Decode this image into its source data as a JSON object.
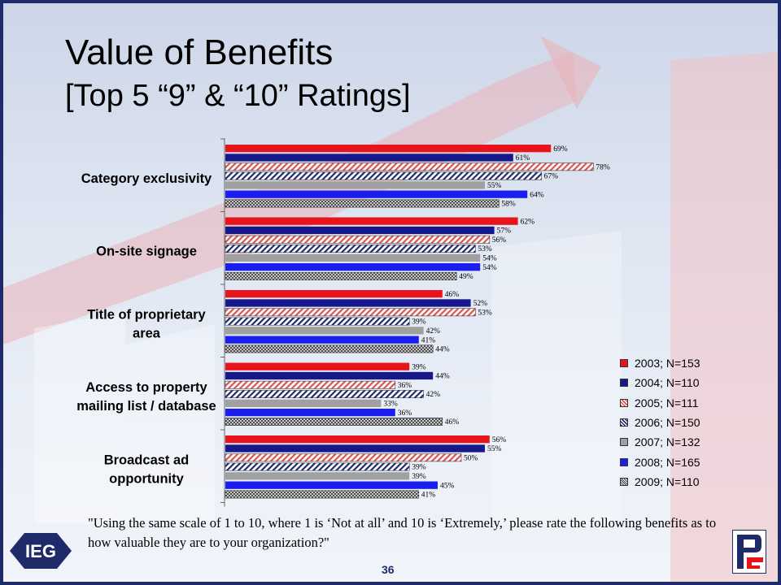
{
  "slide": {
    "title_line1": "Value of Benefits",
    "title_line2": "[Top 5 “9” & “10” Ratings]",
    "note": "\"Using the same scale of 1 to 10, where 1 is ‘Not at all’ and 10 is ‘Extremely,’ please rate the following benefits as to how valuable they are to your organization?\"",
    "page_number": "36",
    "logo_text": "IEG"
  },
  "colors": {
    "2003": "#e8141c",
    "2004": "#17198a",
    "2005": "#d9534f",
    "2006": "#1f2a6b",
    "2007": "#a0a0a0",
    "2008": "#1a1ff0",
    "2009": "#555555",
    "frame": "#1f2a6b"
  },
  "chart_data": {
    "type": "bar",
    "orientation": "horizontal",
    "categories": [
      "Category exclusivity",
      "On-site signage",
      "Title of proprietary area",
      "Access to property mailing list / database",
      "Broadcast ad opportunity"
    ],
    "series": [
      {
        "name": "2003; N=153",
        "fill": "solid",
        "values": [
          69,
          62,
          46,
          39,
          56
        ]
      },
      {
        "name": "2004; N=110",
        "fill": "solid",
        "values": [
          61,
          57,
          52,
          44,
          55
        ]
      },
      {
        "name": "2005; N=111",
        "fill": "hatch-red",
        "values": [
          78,
          56,
          53,
          36,
          50
        ]
      },
      {
        "name": "2006; N=150",
        "fill": "hatch-navy",
        "values": [
          67,
          53,
          39,
          42,
          39
        ]
      },
      {
        "name": "2007; N=132",
        "fill": "solid",
        "values": [
          55,
          54,
          42,
          33,
          39
        ]
      },
      {
        "name": "2008; N=165",
        "fill": "solid",
        "values": [
          64,
          54,
          41,
          36,
          45
        ]
      },
      {
        "name": "2009; N=110",
        "fill": "crosshatch",
        "values": [
          58,
          49,
          44,
          46,
          41
        ]
      }
    ],
    "value_suffix": "%",
    "xlim": [
      0,
      100
    ],
    "legend_position": "right-bottom"
  }
}
